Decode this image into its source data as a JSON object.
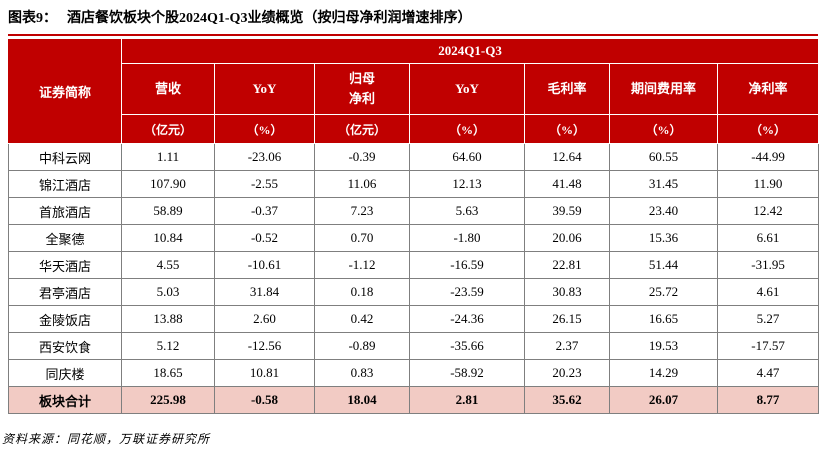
{
  "title": {
    "prefix": "图表9：",
    "text": "酒店餐饮板块个股2024Q1-Q3业绩概览（按归母净利润增速排序）"
  },
  "table": {
    "corner_header": "证券简称",
    "group_header": "2024Q1-Q3",
    "columns": [
      {
        "label": "营收",
        "unit": "（亿元）"
      },
      {
        "label": "YoY",
        "unit": "（%）"
      },
      {
        "label": "归母\n净利",
        "unit": "（亿元）"
      },
      {
        "label": "YoY",
        "unit": "（%）"
      },
      {
        "label": "毛利率",
        "unit": "（%）"
      },
      {
        "label": "期间费用率",
        "unit": "（%）"
      },
      {
        "label": "净利率",
        "unit": "（%）"
      }
    ],
    "rows": [
      {
        "name": "中科云网",
        "values": [
          "1.11",
          "-23.06",
          "-0.39",
          "64.60",
          "12.64",
          "60.55",
          "-44.99"
        ]
      },
      {
        "name": "锦江酒店",
        "values": [
          "107.90",
          "-2.55",
          "11.06",
          "12.13",
          "41.48",
          "31.45",
          "11.90"
        ]
      },
      {
        "name": "首旅酒店",
        "values": [
          "58.89",
          "-0.37",
          "7.23",
          "5.63",
          "39.59",
          "23.40",
          "12.42"
        ]
      },
      {
        "name": "全聚德",
        "values": [
          "10.84",
          "-0.52",
          "0.70",
          "-1.80",
          "20.06",
          "15.36",
          "6.61"
        ]
      },
      {
        "name": "华天酒店",
        "values": [
          "4.55",
          "-10.61",
          "-1.12",
          "-16.59",
          "22.81",
          "51.44",
          "-31.95"
        ]
      },
      {
        "name": "君亭酒店",
        "values": [
          "5.03",
          "31.84",
          "0.18",
          "-23.59",
          "30.83",
          "25.72",
          "4.61"
        ]
      },
      {
        "name": "金陵饭店",
        "values": [
          "13.88",
          "2.60",
          "0.42",
          "-24.36",
          "26.15",
          "16.65",
          "5.27"
        ]
      },
      {
        "name": "西安饮食",
        "values": [
          "5.12",
          "-12.56",
          "-0.89",
          "-35.66",
          "2.37",
          "19.53",
          "-17.57"
        ]
      },
      {
        "name": "同庆楼",
        "values": [
          "18.65",
          "10.81",
          "0.83",
          "-58.92",
          "20.23",
          "14.29",
          "4.47"
        ]
      }
    ],
    "total_row": {
      "name": "板块合计",
      "values": [
        "225.98",
        "-0.58",
        "18.04",
        "2.81",
        "35.62",
        "26.07",
        "8.77"
      ]
    }
  },
  "footer": {
    "source": "资料来源：同花顺，万联证券研究所"
  },
  "colors": {
    "header_bg": "#C00000",
    "total_row_bg": "#F2CBC4",
    "title_rule": "#C00000"
  }
}
